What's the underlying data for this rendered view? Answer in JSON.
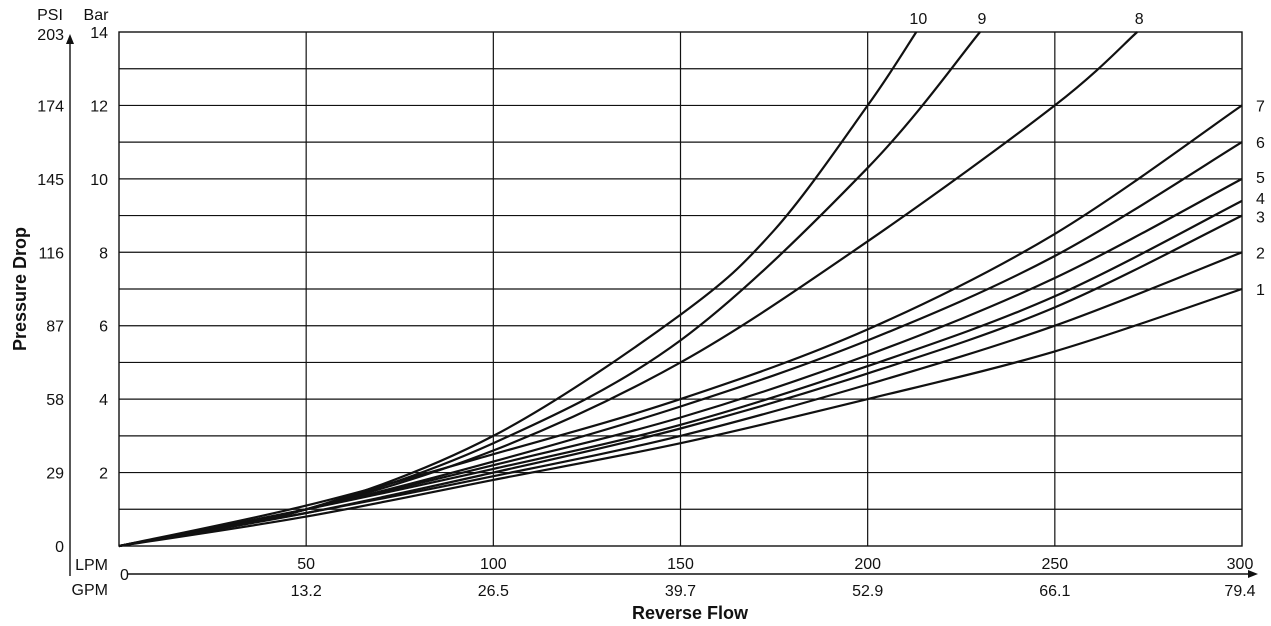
{
  "chart_data": {
    "type": "line",
    "title": "",
    "xlabel": "Reverse Flow",
    "ylabel": "Pressure Drop",
    "x_units": {
      "primary": "LPM",
      "secondary": "GPM"
    },
    "y_units": {
      "primary": "Bar",
      "secondary": "PSI"
    },
    "xlim": [
      0,
      300
    ],
    "ylim": [
      0,
      14
    ],
    "grid": true,
    "legend": "none (curves labeled at line ends)",
    "x_ticks_lpm": [
      "0",
      "50",
      "100",
      "150",
      "200",
      "250",
      "300"
    ],
    "x_ticks_gpm": [
      "13.2",
      "26.5",
      "39.7",
      "52.9",
      "66.1",
      "79.4"
    ],
    "y_ticks_bar": [
      "2",
      "4",
      "6",
      "8",
      "10",
      "12",
      "14"
    ],
    "y_ticks_psi": [
      "0",
      "29",
      "58",
      "87",
      "116",
      "145",
      "174",
      "203"
    ],
    "series": [
      {
        "name": "1",
        "x": [
          0,
          50,
          100,
          150,
          200,
          250,
          300
        ],
        "y": [
          0,
          0.8,
          1.8,
          2.8,
          4.0,
          5.3,
          7.0
        ]
      },
      {
        "name": "2",
        "x": [
          0,
          50,
          100,
          150,
          200,
          250,
          300
        ],
        "y": [
          0,
          0.9,
          1.9,
          3.0,
          4.4,
          6.0,
          8.0
        ]
      },
      {
        "name": "3",
        "x": [
          0,
          50,
          100,
          150,
          200,
          250,
          300
        ],
        "y": [
          0,
          0.9,
          2.0,
          3.2,
          4.7,
          6.5,
          9.0
        ]
      },
      {
        "name": "4",
        "x": [
          0,
          50,
          100,
          150,
          200,
          250,
          300
        ],
        "y": [
          0,
          1.0,
          2.1,
          3.3,
          4.9,
          6.8,
          9.4
        ]
      },
      {
        "name": "5",
        "x": [
          0,
          50,
          100,
          150,
          200,
          250,
          300
        ],
        "y": [
          0,
          1.0,
          2.2,
          3.5,
          5.2,
          7.3,
          10.0
        ]
      },
      {
        "name": "6",
        "x": [
          0,
          50,
          100,
          150,
          200,
          250,
          300
        ],
        "y": [
          0,
          1.0,
          2.3,
          3.8,
          5.6,
          7.9,
          11.0
        ]
      },
      {
        "name": "7",
        "x": [
          0,
          50,
          100,
          150,
          200,
          250,
          300
        ],
        "y": [
          0,
          1.1,
          2.5,
          4.0,
          5.9,
          8.5,
          12.0
        ]
      },
      {
        "name": "8",
        "x": [
          0,
          50,
          100,
          150,
          200,
          250,
          272
        ],
        "y": [
          0,
          1.0,
          2.6,
          5.0,
          8.3,
          12.0,
          14.0
        ]
      },
      {
        "name": "9",
        "x": [
          0,
          50,
          100,
          150,
          200,
          230
        ],
        "y": [
          0,
          1.0,
          2.8,
          5.6,
          10.3,
          14.0
        ]
      },
      {
        "name": "10",
        "x": [
          0,
          50,
          100,
          150,
          175,
          200,
          213
        ],
        "y": [
          0,
          1.0,
          3.0,
          6.3,
          8.6,
          12.0,
          14.0
        ]
      }
    ]
  }
}
